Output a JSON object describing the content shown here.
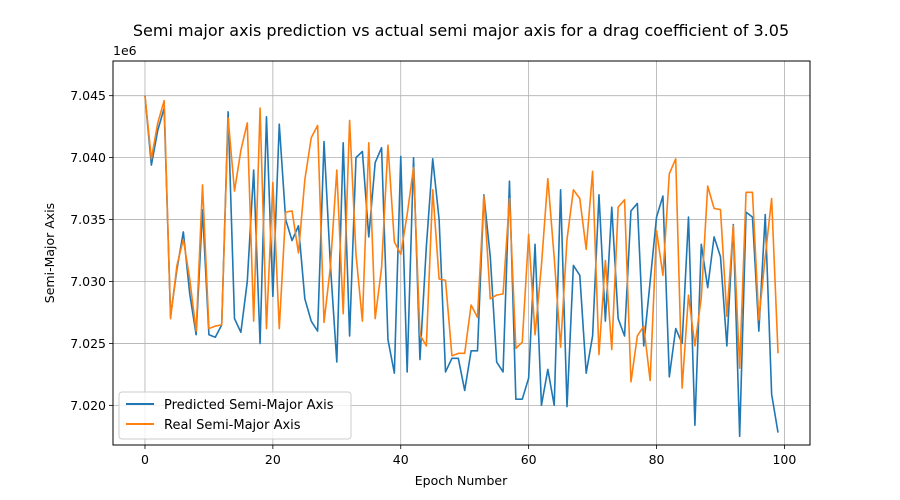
{
  "chart_data": {
    "type": "line",
    "title": "Semi major axis prediction vs actual semi major axis for a drag coefficient of 3.05",
    "xlabel": "Epoch Number",
    "ylabel": "Semi-Major Axis",
    "offset_label": "1e6",
    "xlim": [
      -5,
      104
    ],
    "ylim": [
      7.0168,
      7.0478
    ],
    "x_ticks": [
      0,
      20,
      40,
      60,
      80,
      100
    ],
    "x_tick_labels": [
      "0",
      "20",
      "40",
      "60",
      "80",
      "100"
    ],
    "y_ticks": [
      7.02,
      7.025,
      7.03,
      7.035,
      7.04,
      7.045
    ],
    "y_tick_labels": [
      "7.020",
      "7.025",
      "7.030",
      "7.035",
      "7.040",
      "7.045"
    ],
    "grid": true,
    "legend_position": "lower-left",
    "x": [
      0,
      1,
      2,
      3,
      4,
      5,
      6,
      7,
      8,
      9,
      10,
      11,
      12,
      13,
      14,
      15,
      16,
      17,
      18,
      19,
      20,
      21,
      22,
      23,
      24,
      25,
      26,
      27,
      28,
      29,
      30,
      31,
      32,
      33,
      34,
      35,
      36,
      37,
      38,
      39,
      40,
      41,
      42,
      43,
      44,
      45,
      46,
      47,
      48,
      49,
      50,
      51,
      52,
      53,
      54,
      55,
      56,
      57,
      58,
      59,
      60,
      61,
      62,
      63,
      64,
      65,
      66,
      67,
      68,
      69,
      70,
      71,
      72,
      73,
      74,
      75,
      76,
      77,
      78,
      79,
      80,
      81,
      82,
      83,
      84,
      85,
      86,
      87,
      88,
      89,
      90,
      91,
      92,
      93,
      94,
      95,
      96,
      97,
      98,
      99
    ],
    "series": [
      {
        "name": "Predicted Semi-Major Axis",
        "color": "#1f77b4",
        "values": [
          7.045,
          7.0394,
          7.0422,
          7.044,
          7.0272,
          7.031,
          7.034,
          7.029,
          7.0257,
          7.0358,
          7.0257,
          7.0255,
          7.0265,
          7.0437,
          7.027,
          7.0259,
          7.03,
          7.039,
          7.025,
          7.0433,
          7.0288,
          7.0427,
          7.035,
          7.0333,
          7.0345,
          7.0286,
          7.0268,
          7.026,
          7.0413,
          7.0313,
          7.0235,
          7.0412,
          7.0256,
          7.04,
          7.0405,
          7.0336,
          7.0396,
          7.0408,
          7.0253,
          7.0226,
          7.0401,
          7.0227,
          7.04,
          7.0237,
          7.0328,
          7.0399,
          7.035,
          7.0227,
          7.0238,
          7.0238,
          7.0212,
          7.0244,
          7.0244,
          7.037,
          7.032,
          7.0235,
          7.0227,
          7.0381,
          7.0205,
          7.0205,
          7.0222,
          7.033,
          7.02,
          7.0229,
          7.02,
          7.0374,
          7.0199,
          7.0313,
          7.0305,
          7.0226,
          7.0256,
          7.037,
          7.0268,
          7.036,
          7.027,
          7.0256,
          7.0357,
          7.0363,
          7.0248,
          7.03,
          7.0352,
          7.0369,
          7.0223,
          7.0262,
          7.025,
          7.0352,
          7.0184,
          7.033,
          7.0295,
          7.0336,
          7.032,
          7.0248,
          7.0346,
          7.0175,
          7.0356,
          7.0352,
          7.026,
          7.0354,
          7.0209,
          7.0178
        ]
      },
      {
        "name": "Real Semi-Major Axis",
        "color": "#ff7f0e",
        "values": [
          7.045,
          7.0399,
          7.0428,
          7.0446,
          7.027,
          7.0313,
          7.0334,
          7.0302,
          7.026,
          7.0378,
          7.0262,
          7.0264,
          7.0265,
          7.0432,
          7.0373,
          7.0406,
          7.0428,
          7.0268,
          7.044,
          7.0262,
          7.038,
          7.0262,
          7.0356,
          7.0357,
          7.0323,
          7.0382,
          7.0416,
          7.0426,
          7.0267,
          7.0312,
          7.039,
          7.0274,
          7.043,
          7.0322,
          7.0268,
          7.0412,
          7.027,
          7.0311,
          7.041,
          7.0332,
          7.0322,
          7.0354,
          7.0392,
          7.0257,
          7.0248,
          7.0374,
          7.0302,
          7.0301,
          7.024,
          7.0242,
          7.0242,
          7.0281,
          7.0271,
          7.0369,
          7.0286,
          7.0289,
          7.029,
          7.0367,
          7.0246,
          7.0251,
          7.0338,
          7.0257,
          7.0313,
          7.0383,
          7.0319,
          7.0247,
          7.0334,
          7.0374,
          7.0367,
          7.0326,
          7.0389,
          7.0241,
          7.0317,
          7.0245,
          7.036,
          7.0366,
          7.0219,
          7.0256,
          7.0264,
          7.022,
          7.0341,
          7.0305,
          7.0387,
          7.0399,
          7.0214,
          7.0289,
          7.0248,
          7.0287,
          7.0377,
          7.0359,
          7.0358,
          7.0272,
          7.0345,
          7.023,
          7.0372,
          7.0372,
          7.0269,
          7.032,
          7.0367,
          7.0242
        ]
      }
    ]
  }
}
